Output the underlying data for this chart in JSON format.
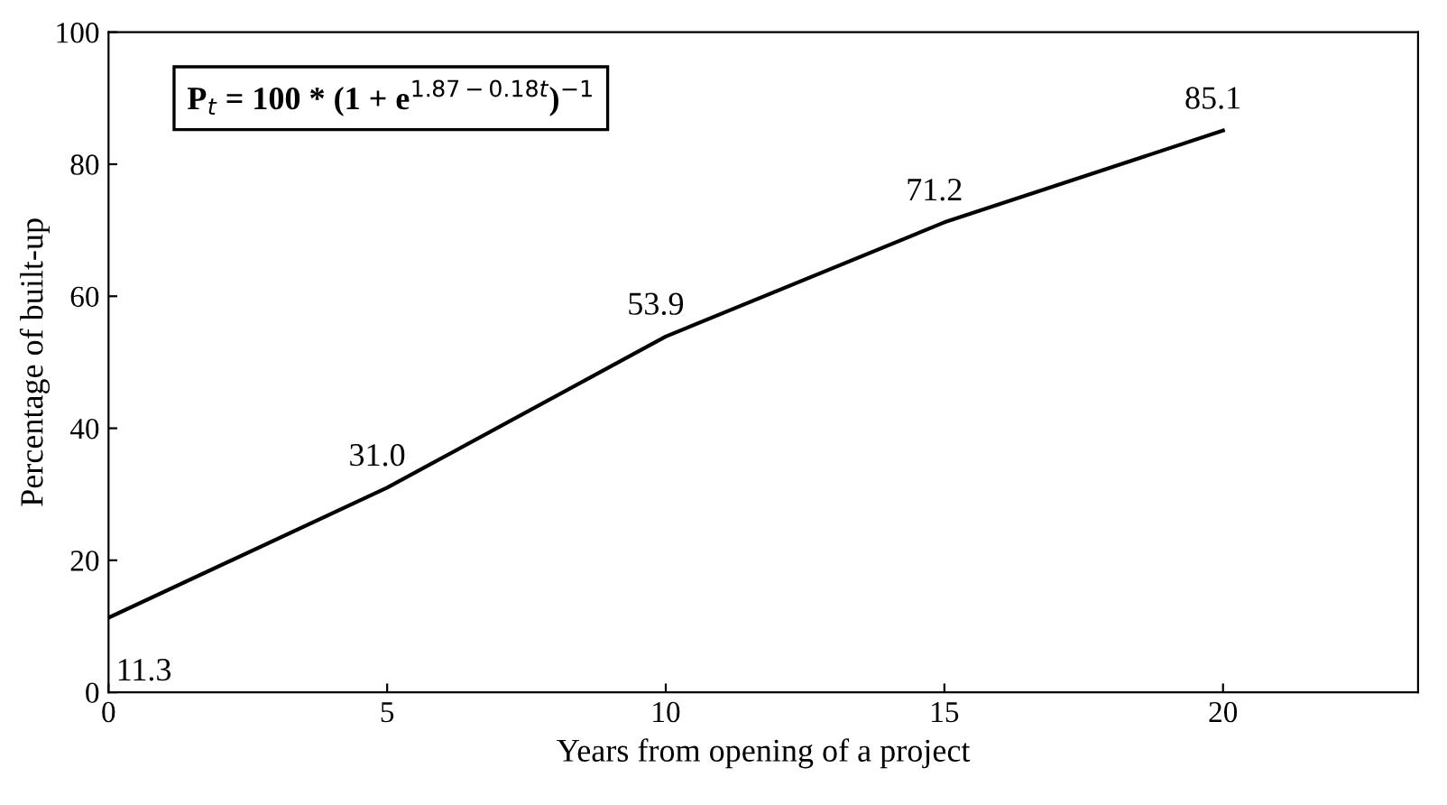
{
  "chart_data": {
    "type": "line",
    "xlabel": "Years from opening of a project",
    "ylabel": "Percentage of built-up",
    "x": [
      0,
      5,
      10,
      15,
      20
    ],
    "series": [
      {
        "color": "#000000",
        "values": [
          11.3,
          31.0,
          53.9,
          71.2,
          85.1
        ]
      }
    ],
    "xlim": [
      0,
      23.5
    ],
    "xticks": [
      0,
      5,
      10,
      15,
      20
    ],
    "ylim": [
      0,
      100
    ],
    "yticks": [
      0,
      20,
      40,
      60,
      80,
      100
    ],
    "value_labels": [
      "11.3",
      "31.0",
      "53.9",
      "71.2",
      "85.1"
    ],
    "grid": false,
    "legend": false,
    "marker": "none",
    "line_style": "solid",
    "annotations": [
      "P$_{t}$ = 100 * (1 + e$^{1.87−0.18t}$)$^{−1}$"
    ]
  }
}
